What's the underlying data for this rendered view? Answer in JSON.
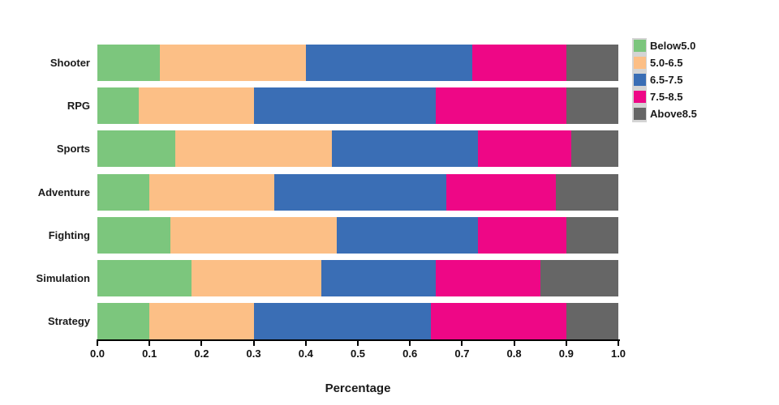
{
  "chart_data": {
    "type": "bar",
    "orientation": "horizontal",
    "stacked": true,
    "title": "",
    "xlabel": "Percentage",
    "ylabel": "",
    "xlim": [
      0.0,
      1.0
    ],
    "x_ticks": [
      0.0,
      0.1,
      0.2,
      0.3,
      0.4,
      0.5,
      0.6,
      0.7,
      0.8,
      0.9,
      1.0
    ],
    "grid": false,
    "legend_position": "outside-top-right",
    "categories": [
      "Shooter",
      "RPG",
      "Sports",
      "Adventure",
      "Fighting",
      "Simulation",
      "Strategy"
    ],
    "series": [
      {
        "name": "Below5.0",
        "color": "#7cc67d",
        "values": [
          0.12,
          0.08,
          0.15,
          0.1,
          0.14,
          0.18,
          0.1
        ]
      },
      {
        "name": "5.0-6.5",
        "color": "#fcbf86",
        "values": [
          0.28,
          0.22,
          0.3,
          0.24,
          0.32,
          0.25,
          0.2
        ]
      },
      {
        "name": "6.5-7.5",
        "color": "#3a6eb5",
        "values": [
          0.32,
          0.35,
          0.28,
          0.33,
          0.27,
          0.22,
          0.34
        ]
      },
      {
        "name": "7.5-8.5",
        "color": "#ee0786",
        "values": [
          0.18,
          0.25,
          0.18,
          0.21,
          0.17,
          0.2,
          0.26
        ]
      },
      {
        "name": "Above8.5",
        "color": "#666666",
        "values": [
          0.1,
          0.1,
          0.09,
          0.12,
          0.1,
          0.15,
          0.1
        ]
      }
    ]
  },
  "styles": {
    "text_color": "#1a1a1a",
    "axis_color": "#000000",
    "legend_strip_color": "#d4d4d4",
    "background": "#ffffff"
  }
}
